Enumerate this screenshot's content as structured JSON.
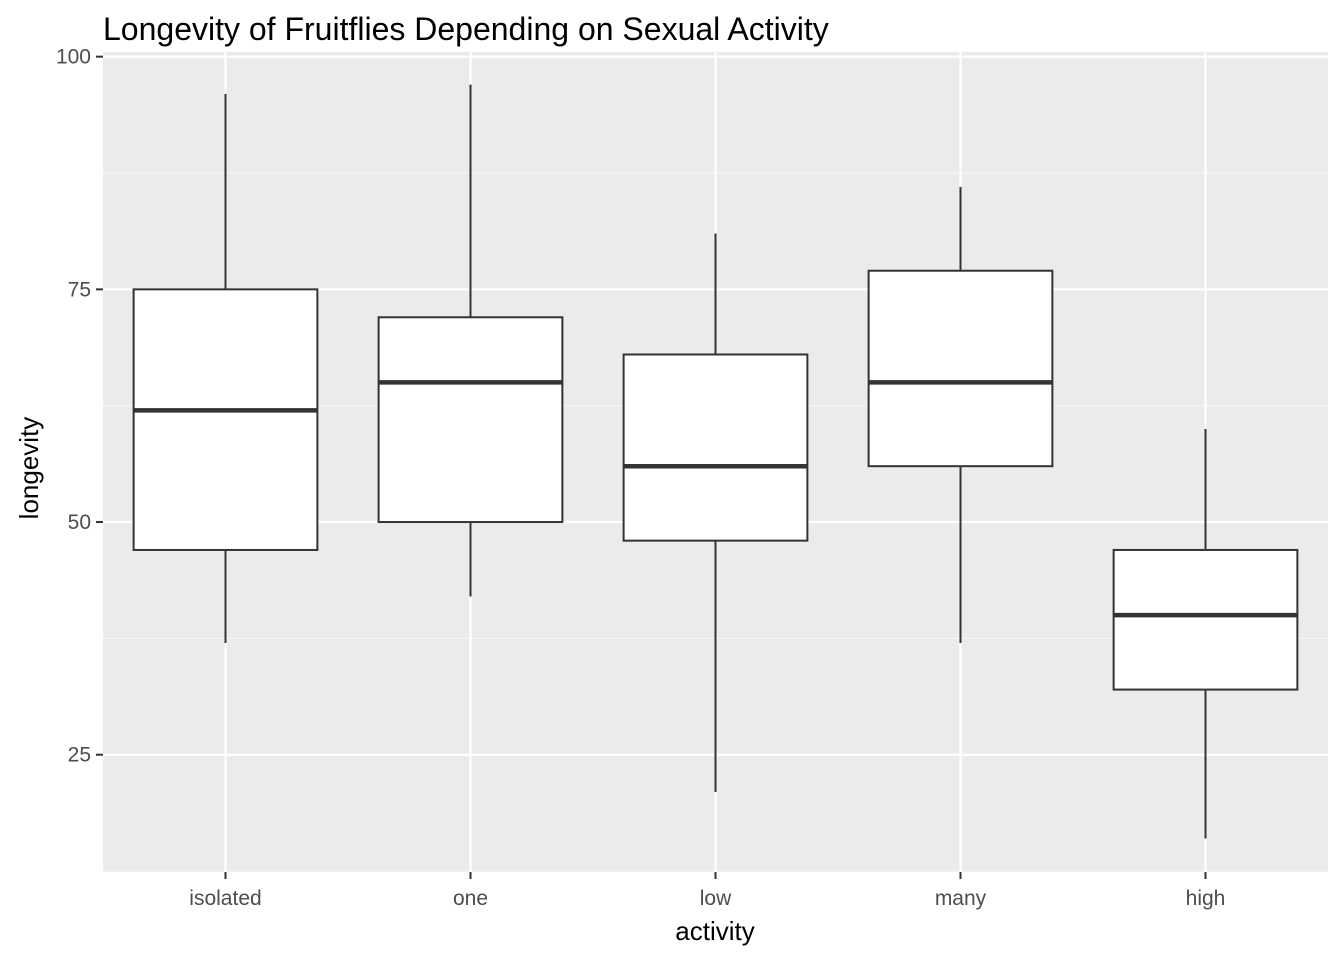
{
  "chart_data": {
    "type": "boxplot",
    "title": "Longevity of Fruitflies Depending on Sexual Activity",
    "xlabel": "activity",
    "ylabel": "longevity",
    "categories": [
      "isolated",
      "one",
      "low",
      "many",
      "high"
    ],
    "y_ticks": [
      25,
      50,
      75,
      100
    ],
    "y_tick_labels": [
      "25",
      "50",
      "75",
      "100"
    ],
    "ylim": [
      12.4,
      100.5
    ],
    "grid": true,
    "boxes": [
      {
        "category": "isolated",
        "min": 37,
        "q1": 47,
        "median": 62,
        "q3": 75,
        "max": 96
      },
      {
        "category": "one",
        "min": 42,
        "q1": 50,
        "median": 65,
        "q3": 72,
        "max": 97
      },
      {
        "category": "low",
        "min": 21,
        "q1": 48,
        "median": 56,
        "q3": 68,
        "max": 81
      },
      {
        "category": "many",
        "min": 37,
        "q1": 56,
        "median": 65,
        "q3": 77,
        "max": 86
      },
      {
        "category": "high",
        "min": 16,
        "q1": 32,
        "median": 40,
        "q3": 47,
        "max": 60
      }
    ],
    "colors": {
      "panel_background": "#ebebeb",
      "grid_major": "#ffffff",
      "grid_minor": "#f5f5f5",
      "box_fill": "#ffffff",
      "box_stroke": "#333333",
      "tick_text": "#4d4d4d",
      "tick_mark": "#333333"
    }
  }
}
